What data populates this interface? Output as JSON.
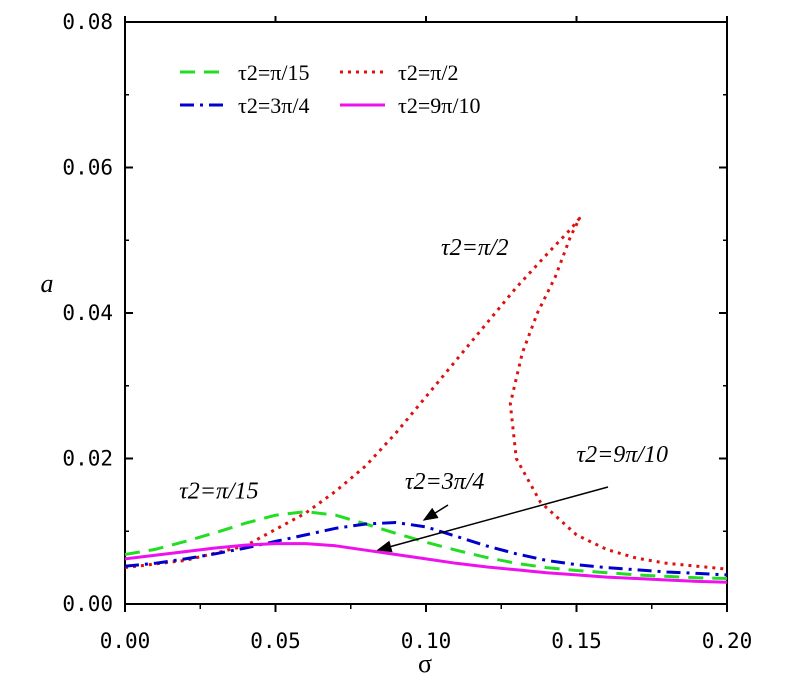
{
  "chart_data": {
    "type": "line",
    "xlabel": "σ",
    "ylabel": "a",
    "xlim": [
      0.0,
      0.2
    ],
    "ylim": [
      0.0,
      0.08
    ],
    "xticks": [
      "0.00",
      "0.05",
      "0.10",
      "0.15",
      "0.20"
    ],
    "yticks": [
      "0.00",
      "0.02",
      "0.04",
      "0.06",
      "0.08"
    ],
    "grid": false,
    "legend_position": "top-left",
    "series": [
      {
        "name": "τ2=π/15",
        "color": "#22dd22",
        "style": "dashed",
        "points": [
          [
            0.0,
            0.0068
          ],
          [
            0.01,
            0.0075
          ],
          [
            0.02,
            0.0086
          ],
          [
            0.03,
            0.0098
          ],
          [
            0.04,
            0.0111
          ],
          [
            0.05,
            0.0122
          ],
          [
            0.06,
            0.0127
          ],
          [
            0.07,
            0.0122
          ],
          [
            0.08,
            0.011
          ],
          [
            0.09,
            0.0097
          ],
          [
            0.1,
            0.0085
          ],
          [
            0.11,
            0.0074
          ],
          [
            0.12,
            0.0064
          ],
          [
            0.13,
            0.0056
          ],
          [
            0.14,
            0.005
          ],
          [
            0.15,
            0.0046
          ],
          [
            0.16,
            0.0043
          ],
          [
            0.17,
            0.004
          ],
          [
            0.18,
            0.0038
          ],
          [
            0.19,
            0.0036
          ],
          [
            0.2,
            0.0035
          ]
        ]
      },
      {
        "name": "τ2=π/2",
        "color": "#dd1111",
        "style": "dotted",
        "points": [
          [
            0.0,
            0.005
          ],
          [
            0.02,
            0.006
          ],
          [
            0.04,
            0.008
          ],
          [
            0.06,
            0.0125
          ],
          [
            0.07,
            0.0155
          ],
          [
            0.08,
            0.019
          ],
          [
            0.09,
            0.0235
          ],
          [
            0.1,
            0.0285
          ],
          [
            0.11,
            0.0335
          ],
          [
            0.12,
            0.0385
          ],
          [
            0.13,
            0.0435
          ],
          [
            0.14,
            0.048
          ],
          [
            0.148,
            0.0515
          ],
          [
            0.151,
            0.053
          ],
          [
            0.148,
            0.0505
          ],
          [
            0.143,
            0.045
          ],
          [
            0.137,
            0.04
          ],
          [
            0.132,
            0.0345
          ],
          [
            0.128,
            0.0275
          ],
          [
            0.13,
            0.02
          ],
          [
            0.138,
            0.014
          ],
          [
            0.15,
            0.0095
          ],
          [
            0.16,
            0.0075
          ],
          [
            0.17,
            0.0063
          ],
          [
            0.18,
            0.0056
          ],
          [
            0.19,
            0.0052
          ],
          [
            0.2,
            0.0048
          ]
        ]
      },
      {
        "name": "τ2=3π/4",
        "color": "#0000cc",
        "style": "dash-dot",
        "points": [
          [
            0.0,
            0.0052
          ],
          [
            0.01,
            0.0056
          ],
          [
            0.02,
            0.0062
          ],
          [
            0.03,
            0.0069
          ],
          [
            0.04,
            0.0077
          ],
          [
            0.05,
            0.0086
          ],
          [
            0.06,
            0.0095
          ],
          [
            0.07,
            0.0104
          ],
          [
            0.08,
            0.011
          ],
          [
            0.09,
            0.0112
          ],
          [
            0.1,
            0.0106
          ],
          [
            0.11,
            0.0093
          ],
          [
            0.12,
            0.008
          ],
          [
            0.13,
            0.0069
          ],
          [
            0.14,
            0.006
          ],
          [
            0.15,
            0.0054
          ],
          [
            0.16,
            0.005
          ],
          [
            0.17,
            0.0047
          ],
          [
            0.18,
            0.0044
          ],
          [
            0.19,
            0.0042
          ],
          [
            0.2,
            0.004
          ]
        ]
      },
      {
        "name": "τ2=9π/10",
        "color": "#ee11ee",
        "style": "solid",
        "points": [
          [
            0.0,
            0.0062
          ],
          [
            0.01,
            0.0067
          ],
          [
            0.02,
            0.0072
          ],
          [
            0.03,
            0.0077
          ],
          [
            0.04,
            0.0081
          ],
          [
            0.05,
            0.0083
          ],
          [
            0.06,
            0.0083
          ],
          [
            0.07,
            0.008
          ],
          [
            0.08,
            0.0074
          ],
          [
            0.09,
            0.0068
          ],
          [
            0.1,
            0.0062
          ],
          [
            0.11,
            0.0056
          ],
          [
            0.12,
            0.0051
          ],
          [
            0.13,
            0.0047
          ],
          [
            0.14,
            0.0043
          ],
          [
            0.15,
            0.004
          ],
          [
            0.16,
            0.0037
          ],
          [
            0.17,
            0.0035
          ],
          [
            0.18,
            0.0033
          ],
          [
            0.19,
            0.0031
          ],
          [
            0.2,
            0.003
          ]
        ]
      }
    ],
    "annotations": [
      {
        "text": "τ2=π/2",
        "at": [
          0.105,
          0.048
        ]
      },
      {
        "text": "τ2=π/15",
        "at": [
          0.018,
          0.0145
        ]
      },
      {
        "text": "τ2=3π/4",
        "at": [
          0.093,
          0.0158
        ]
      },
      {
        "text": "τ2=9π/10",
        "at": [
          0.15,
          0.0195
        ]
      }
    ]
  }
}
